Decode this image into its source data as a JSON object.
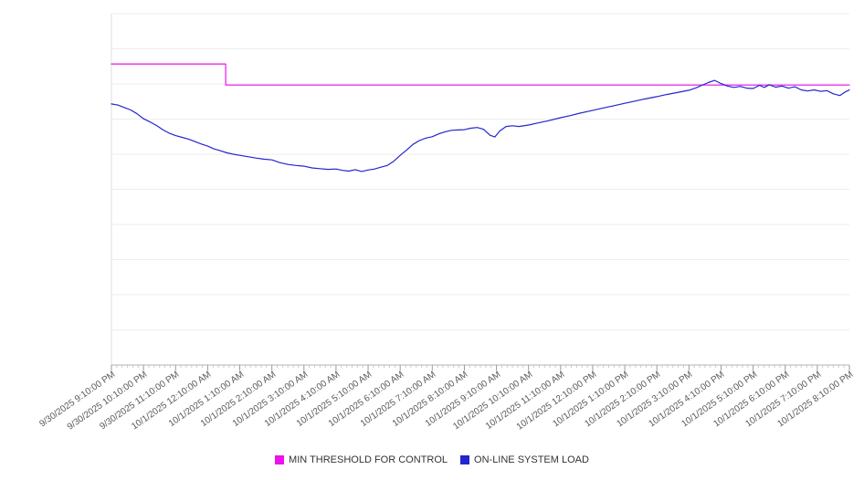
{
  "colors": {
    "threshold": "#ee11ee",
    "load": "#2425cd",
    "gridline": "#ededed",
    "axis": "#b3b3b3",
    "left_axis": "#dcdcdc",
    "tick_minor": "#c9c9c9",
    "tick_major": "#9a9a9a",
    "label_text": "#595959",
    "legend_text": "#333333"
  },
  "legend": {
    "items": [
      {
        "label": "MIN THRESHOLD FOR CONTROL",
        "color": "#ee11ee"
      },
      {
        "label": "ON-LINE SYSTEM LOAD",
        "color": "#2425cd"
      }
    ]
  },
  "chart_data": {
    "type": "line",
    "title": "",
    "xlabel": "",
    "ylabel": "",
    "y_tick_labels": [],
    "ylim": [
      0,
      100
    ],
    "grid": "horizontal",
    "legend_position": "bottom",
    "x_labels": [
      "9/30/2025 9:10:00 PM",
      "9/30/2025 10:10:00 PM",
      "9/30/2025 11:10:00 PM",
      "10/1/2025 12:10:00 AM",
      "10/1/2025 1:10:00 AM",
      "10/1/2025 2:10:00 AM",
      "10/1/2025 3:10:00 AM",
      "10/1/2025 4:10:00 AM",
      "10/1/2025 5:10:00 AM",
      "10/1/2025 6:10:00 AM",
      "10/1/2025 7:10:00 AM",
      "10/1/2025 8:10:00 AM",
      "10/1/2025 9:10:00 AM",
      "10/1/2025 10:10:00 AM",
      "10/1/2025 11:10:00 AM",
      "10/1/2025 12:10:00 PM",
      "10/1/2025 1:10:00 PM",
      "10/1/2025 2:10:00 PM",
      "10/1/2025 3:10:00 PM",
      "10/1/2025 4:10:00 PM",
      "10/1/2025 5:10:00 PM",
      "10/1/2025 6:10:00 PM",
      "10/1/2025 7:10:00 PM",
      "10/1/2025 8:10:00 PM"
    ],
    "series": [
      {
        "name": "MIN THRESHOLD FOR CONTROL",
        "color": "#ee11ee",
        "shape": "step",
        "points": [
          [
            0,
            85.7
          ],
          [
            3.56,
            85.7
          ],
          [
            3.56,
            79.7
          ],
          [
            23,
            79.7
          ]
        ]
      },
      {
        "name": "ON-LINE SYSTEM LOAD",
        "color": "#2425cd",
        "shape": "line",
        "points": [
          [
            0,
            74.3
          ],
          [
            0.2,
            74.0
          ],
          [
            0.4,
            73.3
          ],
          [
            0.6,
            72.6
          ],
          [
            0.8,
            71.5
          ],
          [
            1,
            70.1
          ],
          [
            1.2,
            69.2
          ],
          [
            1.4,
            68.2
          ],
          [
            1.6,
            67.0
          ],
          [
            1.8,
            66.0
          ],
          [
            2,
            65.3
          ],
          [
            2.2,
            64.8
          ],
          [
            2.4,
            64.3
          ],
          [
            2.6,
            63.6
          ],
          [
            2.8,
            62.9
          ],
          [
            3,
            62.3
          ],
          [
            3.2,
            61.5
          ],
          [
            3.4,
            61.0
          ],
          [
            3.6,
            60.4
          ],
          [
            3.8,
            60.0
          ],
          [
            4,
            59.7
          ],
          [
            4.25,
            59.3
          ],
          [
            4.5,
            58.9
          ],
          [
            4.75,
            58.6
          ],
          [
            5,
            58.4
          ],
          [
            5.25,
            57.6
          ],
          [
            5.5,
            57.1
          ],
          [
            5.75,
            56.8
          ],
          [
            6,
            56.6
          ],
          [
            6.25,
            56.1
          ],
          [
            6.5,
            55.9
          ],
          [
            6.75,
            55.7
          ],
          [
            7,
            55.8
          ],
          [
            7.2,
            55.4
          ],
          [
            7.4,
            55.2
          ],
          [
            7.6,
            55.6
          ],
          [
            7.8,
            55.1
          ],
          [
            8,
            55.5
          ],
          [
            8.2,
            55.8
          ],
          [
            8.4,
            56.3
          ],
          [
            8.6,
            56.8
          ],
          [
            8.8,
            58.0
          ],
          [
            9,
            59.7
          ],
          [
            9.2,
            61.2
          ],
          [
            9.4,
            62.8
          ],
          [
            9.6,
            63.9
          ],
          [
            9.8,
            64.6
          ],
          [
            10,
            65.0
          ],
          [
            10.2,
            65.8
          ],
          [
            10.4,
            66.4
          ],
          [
            10.6,
            66.8
          ],
          [
            10.8,
            66.9
          ],
          [
            11,
            67.0
          ],
          [
            11.2,
            67.4
          ],
          [
            11.4,
            67.6
          ],
          [
            11.6,
            67.1
          ],
          [
            11.8,
            65.4
          ],
          [
            11.95,
            64.9
          ],
          [
            12.1,
            66.6
          ],
          [
            12.3,
            67.9
          ],
          [
            12.5,
            68.1
          ],
          [
            12.7,
            67.9
          ],
          [
            13,
            68.3
          ],
          [
            13.3,
            68.9
          ],
          [
            13.6,
            69.5
          ],
          [
            14,
            70.4
          ],
          [
            14.3,
            71.0
          ],
          [
            14.6,
            71.7
          ],
          [
            15,
            72.5
          ],
          [
            15.3,
            73.1
          ],
          [
            15.6,
            73.7
          ],
          [
            16,
            74.5
          ],
          [
            16.3,
            75.1
          ],
          [
            16.6,
            75.7
          ],
          [
            17,
            76.4
          ],
          [
            17.3,
            77.0
          ],
          [
            17.6,
            77.5
          ],
          [
            18,
            78.2
          ],
          [
            18.2,
            78.8
          ],
          [
            18.4,
            79.6
          ],
          [
            18.6,
            80.4
          ],
          [
            18.8,
            81.0
          ],
          [
            19,
            80.1
          ],
          [
            19.2,
            79.4
          ],
          [
            19.4,
            79.0
          ],
          [
            19.6,
            79.3
          ],
          [
            19.8,
            78.8
          ],
          [
            20,
            78.7
          ],
          [
            20.2,
            79.6
          ],
          [
            20.35,
            79.0
          ],
          [
            20.5,
            79.8
          ],
          [
            20.7,
            79.1
          ],
          [
            20.9,
            79.4
          ],
          [
            21.1,
            78.8
          ],
          [
            21.3,
            79.2
          ],
          [
            21.5,
            78.3
          ],
          [
            21.7,
            78.0
          ],
          [
            21.9,
            78.3
          ],
          [
            22.1,
            77.9
          ],
          [
            22.3,
            78.1
          ],
          [
            22.5,
            77.2
          ],
          [
            22.7,
            76.7
          ],
          [
            22.85,
            77.6
          ],
          [
            23,
            78.3
          ]
        ]
      }
    ]
  }
}
